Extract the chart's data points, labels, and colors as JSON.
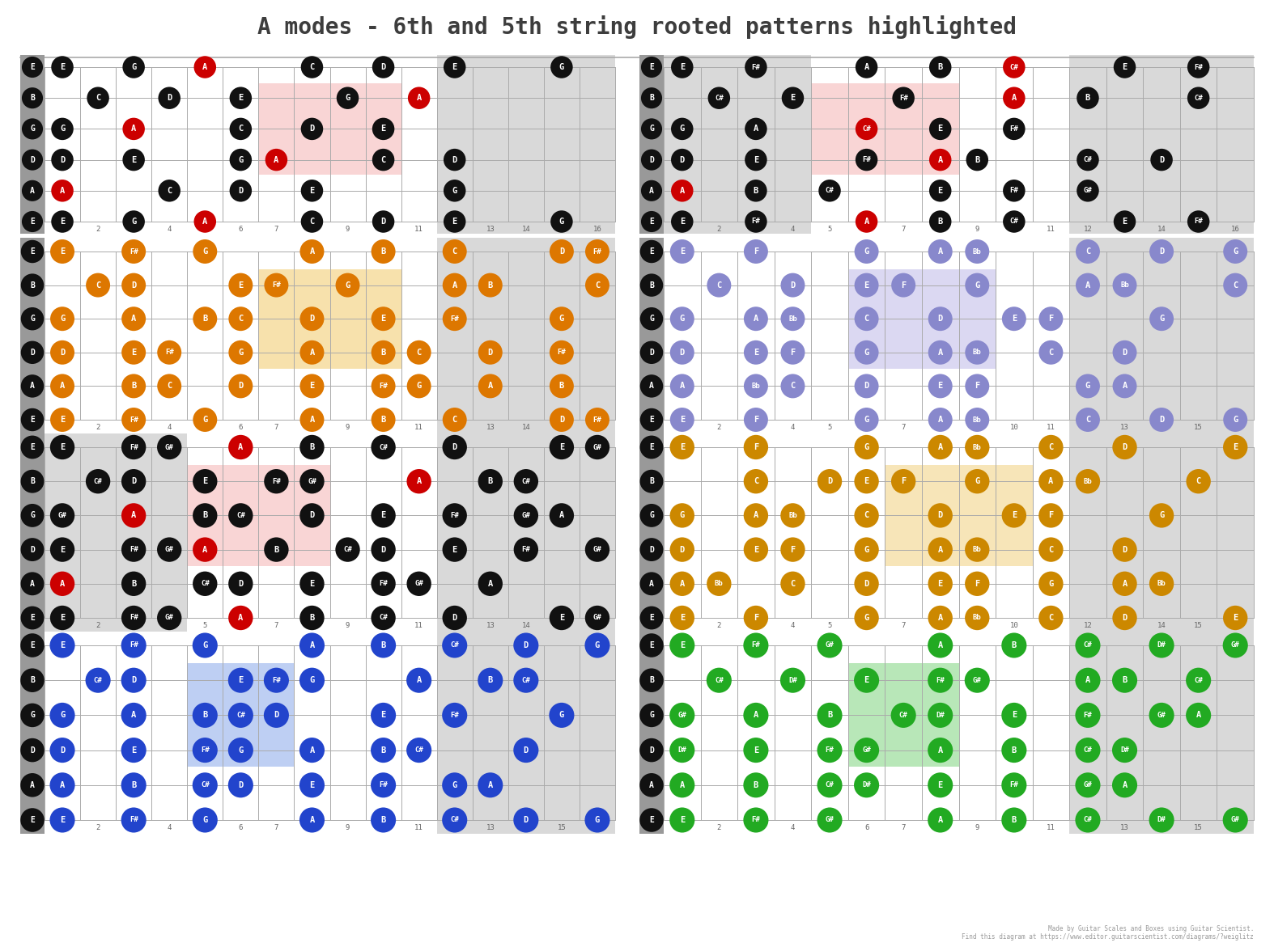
{
  "title": "A modes - 6th and 5th string rooted patterns highlighted",
  "bg": "#ffffff",
  "title_color": "#3d3d3d",
  "separator_color": "#aaaaaa",
  "footer": "Made by Guitar Scales and Boxes using Guitar Scientist.\nFind this diagram at https://www.editor.guitarscientist.com/diagrams/?weiglitz",
  "panels": [
    {
      "dot": "#111111",
      "root": "#cc0000",
      "hl": "#f8c8c8",
      "gray_fret_ranges": [
        [
          11,
          15
        ]
      ],
      "hl_fret_range": [
        6,
        9
      ],
      "hl_string_range": [
        1,
        3
      ],
      "strings": [
        {
          "notes": {
            "0": "E",
            "2": "G",
            "4": "A",
            "7": "C",
            "9": "D",
            "11": "E",
            "14": "G"
          },
          "root_frets": [
            4
          ]
        },
        {
          "notes": {
            "1": "C",
            "3": "D",
            "5": "E",
            "8": "G",
            "10": "A"
          },
          "root_frets": [
            10
          ]
        },
        {
          "notes": {
            "0": "G",
            "2": "A",
            "5": "C",
            "7": "D",
            "9": "E"
          },
          "root_frets": [
            2
          ]
        },
        {
          "notes": {
            "0": "D",
            "2": "E",
            "5": "G",
            "6": "A",
            "9": "C",
            "11": "D"
          },
          "root_frets": [
            6
          ]
        },
        {
          "notes": {
            "0": "A",
            "3": "C",
            "5": "D",
            "7": "E",
            "11": "G"
          },
          "root_frets": [
            0
          ]
        },
        {
          "notes": {
            "0": "E",
            "2": "G",
            "4": "A",
            "7": "C",
            "9": "D",
            "11": "E",
            "14": "G"
          },
          "root_frets": [
            4
          ]
        }
      ]
    },
    {
      "dot": "#111111",
      "root": "#cc0000",
      "hl": "#f8c8c8",
      "gray_fret_ranges": [
        [
          0,
          3
        ],
        [
          11,
          15
        ]
      ],
      "hl_fret_range": [
        4,
        7
      ],
      "hl_string_range": [
        1,
        3
      ],
      "strings": [
        {
          "notes": {
            "0": "E",
            "2": "F#",
            "5": "A",
            "7": "B",
            "9": "C#",
            "12": "E",
            "14": "F#"
          },
          "root_frets": [
            9
          ]
        },
        {
          "notes": {
            "1": "C#",
            "3": "E",
            "6": "F#",
            "9": "A",
            "11": "B",
            "14": "C#"
          },
          "root_frets": [
            9
          ]
        },
        {
          "notes": {
            "0": "G",
            "2": "A",
            "5": "C#",
            "7": "E",
            "9": "F#"
          },
          "root_frets": [
            5
          ]
        },
        {
          "notes": {
            "0": "D",
            "2": "E",
            "5": "F#",
            "7": "A",
            "8": "B",
            "11": "C#",
            "13": "D"
          },
          "root_frets": [
            7
          ]
        },
        {
          "notes": {
            "0": "A",
            "2": "B",
            "4": "C#",
            "7": "E",
            "9": "F#",
            "11": "G#"
          },
          "root_frets": [
            0
          ]
        },
        {
          "notes": {
            "0": "E",
            "2": "F#",
            "5": "A",
            "7": "B",
            "9": "C#",
            "12": "E",
            "14": "F#"
          },
          "root_frets": [
            5
          ]
        }
      ]
    },
    {
      "dot": "#dd7700",
      "root": "#dd7700",
      "hl": "#f5d890",
      "gray_fret_ranges": [
        [
          11,
          15
        ]
      ],
      "hl_fret_range": [
        6,
        9
      ],
      "hl_string_range": [
        1,
        3
      ],
      "strings": [
        {
          "notes": {
            "0": "E",
            "2": "F#",
            "4": "G",
            "7": "A",
            "9": "B",
            "11": "C",
            "14": "D",
            "15": "F#"
          },
          "root_frets": []
        },
        {
          "notes": {
            "1": "C",
            "2": "D",
            "5": "E",
            "6": "F#",
            "8": "G",
            "11": "A",
            "12": "B",
            "15": "C"
          },
          "root_frets": []
        },
        {
          "notes": {
            "0": "G",
            "2": "A",
            "4": "B",
            "5": "C",
            "7": "D",
            "9": "E",
            "11": "F#",
            "14": "G"
          },
          "root_frets": []
        },
        {
          "notes": {
            "0": "D",
            "2": "E",
            "3": "F#",
            "5": "G",
            "7": "A",
            "9": "B",
            "10": "C",
            "12": "D",
            "14": "F#"
          },
          "root_frets": []
        },
        {
          "notes": {
            "0": "A",
            "2": "B",
            "3": "C",
            "5": "D",
            "7": "E",
            "9": "F#",
            "10": "G",
            "12": "A",
            "14": "B"
          },
          "root_frets": []
        },
        {
          "notes": {
            "0": "E",
            "2": "F#",
            "4": "G",
            "7": "A",
            "9": "B",
            "11": "C",
            "14": "D",
            "15": "F#"
          },
          "root_frets": []
        }
      ]
    },
    {
      "dot": "#8888cc",
      "root": "#8888cc",
      "hl": "#d0ccee",
      "gray_fret_ranges": [
        [
          11,
          15
        ]
      ],
      "hl_fret_range": [
        5,
        8
      ],
      "hl_string_range": [
        1,
        3
      ],
      "strings": [
        {
          "notes": {
            "0": "E",
            "2": "F",
            "5": "G",
            "7": "A",
            "8": "Bb",
            "11": "C",
            "13": "D",
            "15": "G"
          },
          "root_frets": []
        },
        {
          "notes": {
            "1": "C",
            "3": "D",
            "5": "E",
            "6": "F",
            "8": "G",
            "11": "A",
            "12": "Bb",
            "15": "C"
          },
          "root_frets": []
        },
        {
          "notes": {
            "0": "G",
            "2": "A",
            "3": "Bb",
            "5": "C",
            "7": "D",
            "9": "E",
            "10": "F",
            "13": "G"
          },
          "root_frets": []
        },
        {
          "notes": {
            "0": "D",
            "2": "E",
            "3": "F",
            "5": "G",
            "7": "A",
            "8": "Bb",
            "10": "C",
            "12": "D"
          },
          "root_frets": []
        },
        {
          "notes": {
            "0": "A",
            "2": "Bb",
            "3": "C",
            "5": "D",
            "7": "E",
            "8": "F",
            "11": "G",
            "12": "A"
          },
          "root_frets": []
        },
        {
          "notes": {
            "0": "E",
            "2": "F",
            "5": "G",
            "7": "A",
            "8": "Bb",
            "11": "C",
            "13": "D",
            "15": "G"
          },
          "root_frets": []
        }
      ]
    },
    {
      "dot": "#111111",
      "root": "#cc0000",
      "hl": "#f8c8c8",
      "gray_fret_ranges": [
        [
          0,
          3
        ],
        [
          11,
          15
        ]
      ],
      "hl_fret_range": [
        4,
        7
      ],
      "hl_string_range": [
        1,
        3
      ],
      "strings": [
        {
          "notes": {
            "0": "E",
            "2": "F#",
            "3": "G#",
            "5": "A",
            "7": "B",
            "9": "C#",
            "11": "D",
            "14": "E",
            "15": "G#"
          },
          "root_frets": [
            5
          ]
        },
        {
          "notes": {
            "1": "C#",
            "2": "D",
            "4": "E",
            "6": "F#",
            "7": "G#",
            "10": "A",
            "12": "B",
            "13": "C#"
          },
          "root_frets": [
            10
          ]
        },
        {
          "notes": {
            "0": "G#",
            "2": "A",
            "4": "B",
            "5": "C#",
            "7": "D",
            "9": "E",
            "11": "F#",
            "13": "G#",
            "14": "A"
          },
          "root_frets": [
            2
          ]
        },
        {
          "notes": {
            "0": "E",
            "2": "F#",
            "3": "G#",
            "4": "A",
            "6": "B",
            "8": "C#",
            "9": "D",
            "11": "E",
            "13": "F#",
            "15": "G#"
          },
          "root_frets": [
            4
          ]
        },
        {
          "notes": {
            "0": "A",
            "2": "B",
            "4": "C#",
            "5": "D",
            "7": "E",
            "9": "F#",
            "10": "G#",
            "12": "A"
          },
          "root_frets": [
            0
          ]
        },
        {
          "notes": {
            "0": "E",
            "2": "F#",
            "3": "G#",
            "5": "A",
            "7": "B",
            "9": "C#",
            "11": "D",
            "14": "E",
            "15": "G#"
          },
          "root_frets": [
            5
          ]
        }
      ]
    },
    {
      "dot": "#cc8800",
      "root": "#cc8800",
      "hl": "#f5dda0",
      "gray_fret_ranges": [
        [
          11,
          15
        ]
      ],
      "hl_fret_range": [
        6,
        9
      ],
      "hl_string_range": [
        1,
        3
      ],
      "strings": [
        {
          "notes": {
            "0": "E",
            "2": "F",
            "5": "G",
            "7": "A",
            "8": "Bb",
            "10": "C",
            "12": "D",
            "15": "E"
          },
          "root_frets": []
        },
        {
          "notes": {
            "2": "C",
            "4": "D",
            "5": "E",
            "6": "F",
            "8": "G",
            "10": "A",
            "11": "Bb",
            "14": "C"
          },
          "root_frets": []
        },
        {
          "notes": {
            "0": "G",
            "2": "A",
            "3": "Bb",
            "5": "C",
            "7": "D",
            "9": "E",
            "10": "F",
            "13": "G"
          },
          "root_frets": []
        },
        {
          "notes": {
            "0": "D",
            "2": "E",
            "3": "F",
            "5": "G",
            "7": "A",
            "8": "Bb",
            "10": "C",
            "12": "D"
          },
          "root_frets": []
        },
        {
          "notes": {
            "0": "A",
            "1": "Bb",
            "3": "C",
            "5": "D",
            "7": "E",
            "8": "F",
            "10": "G",
            "12": "A",
            "13": "Bb"
          },
          "root_frets": []
        },
        {
          "notes": {
            "0": "E",
            "2": "F",
            "5": "G",
            "7": "A",
            "8": "Bb",
            "10": "C",
            "12": "D",
            "15": "E"
          },
          "root_frets": []
        }
      ]
    },
    {
      "dot": "#2244cc",
      "root": "#cc0000",
      "hl": "#a8c0f0",
      "gray_fret_ranges": [
        [
          11,
          15
        ]
      ],
      "hl_fret_range": [
        4,
        6
      ],
      "hl_string_range": [
        1,
        3
      ],
      "strings": [
        {
          "notes": {
            "0": "E",
            "2": "F#",
            "4": "G",
            "7": "A",
            "9": "B",
            "11": "C#",
            "13": "D",
            "15": "G"
          },
          "root_frets": []
        },
        {
          "notes": {
            "1": "C#",
            "2": "D",
            "5": "E",
            "6": "F#",
            "7": "G",
            "10": "A",
            "12": "B",
            "13": "C#"
          },
          "root_frets": []
        },
        {
          "notes": {
            "0": "G",
            "2": "A",
            "4": "B",
            "5": "C#",
            "6": "D",
            "9": "E",
            "11": "F#",
            "14": "G"
          },
          "root_frets": []
        },
        {
          "notes": {
            "0": "D",
            "2": "E",
            "4": "F#",
            "5": "G",
            "7": "A",
            "9": "B",
            "10": "C#",
            "13": "D"
          },
          "root_frets": []
        },
        {
          "notes": {
            "0": "A",
            "2": "B",
            "4": "C#",
            "5": "D",
            "7": "E",
            "9": "F#",
            "11": "G",
            "12": "A"
          },
          "root_frets": []
        },
        {
          "notes": {
            "0": "E",
            "2": "F#",
            "4": "G",
            "7": "A",
            "9": "B",
            "11": "C#",
            "13": "D",
            "15": "G"
          },
          "root_frets": []
        }
      ]
    },
    {
      "dot": "#22aa22",
      "root": "#cc0000",
      "hl": "#a0e0a0",
      "gray_fret_ranges": [
        [
          11,
          15
        ]
      ],
      "hl_fret_range": [
        5,
        7
      ],
      "hl_string_range": [
        1,
        3
      ],
      "strings": [
        {
          "notes": {
            "0": "E",
            "2": "F#",
            "4": "G#",
            "7": "A",
            "9": "B",
            "11": "C#",
            "13": "D#",
            "15": "G#"
          },
          "root_frets": []
        },
        {
          "notes": {
            "1": "C#",
            "3": "D#",
            "5": "E",
            "7": "F#",
            "8": "G#",
            "11": "A",
            "12": "B",
            "14": "C#"
          },
          "root_frets": []
        },
        {
          "notes": {
            "0": "G#",
            "2": "A",
            "4": "B",
            "6": "C#",
            "7": "D#",
            "9": "E",
            "11": "F#",
            "13": "G#",
            "14": "A"
          },
          "root_frets": []
        },
        {
          "notes": {
            "0": "D#",
            "2": "E",
            "4": "F#",
            "5": "G#",
            "7": "A",
            "9": "B",
            "11": "C#",
            "12": "D#"
          },
          "root_frets": []
        },
        {
          "notes": {
            "0": "A",
            "2": "B",
            "4": "C#",
            "5": "D#",
            "7": "E",
            "9": "F#",
            "11": "G#",
            "12": "A"
          },
          "root_frets": []
        },
        {
          "notes": {
            "0": "E",
            "2": "F#",
            "4": "G#",
            "7": "A",
            "9": "B",
            "11": "C#",
            "13": "D#",
            "15": "G#"
          },
          "root_frets": []
        }
      ]
    }
  ]
}
